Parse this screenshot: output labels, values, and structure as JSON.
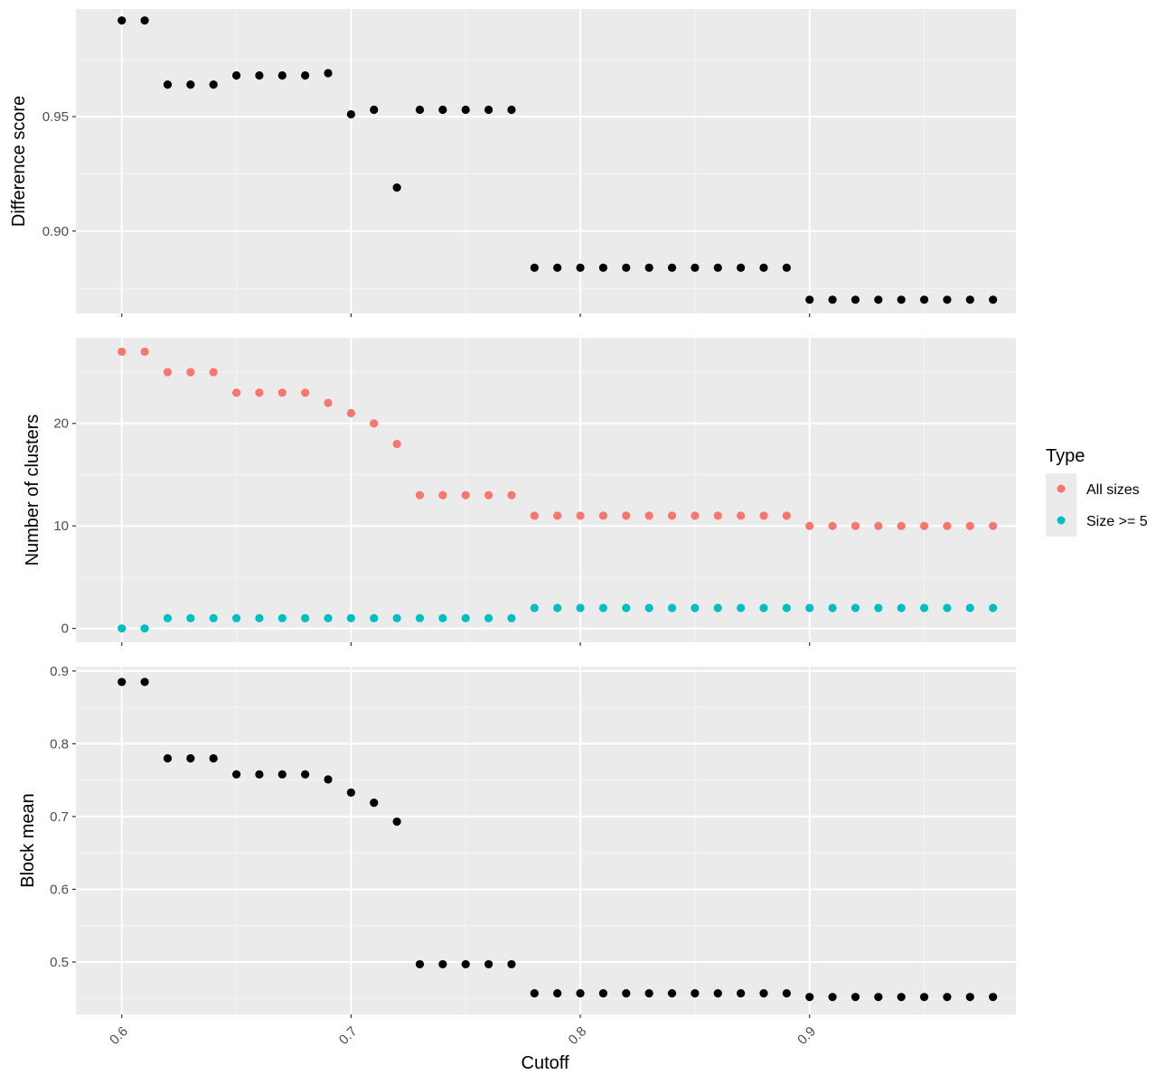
{
  "chart_data": [
    {
      "type": "scatter",
      "panel": "top",
      "ylabel": "Difference score",
      "xlim": [
        0.58,
        0.99
      ],
      "ylim": [
        0.864,
        0.997
      ],
      "y_ticks": [
        0.9,
        0.95
      ],
      "y_tick_labels": [
        "0.90",
        "0.95"
      ],
      "grid": true,
      "series": [
        {
          "color": "#000000",
          "x": [
            0.6,
            0.61,
            0.62,
            0.63,
            0.64,
            0.65,
            0.66,
            0.67,
            0.68,
            0.69,
            0.7,
            0.71,
            0.72,
            0.73,
            0.74,
            0.75,
            0.76,
            0.77,
            0.78,
            0.79,
            0.8,
            0.81,
            0.82,
            0.83,
            0.84,
            0.85,
            0.86,
            0.87,
            0.88,
            0.89,
            0.9,
            0.91,
            0.92,
            0.93,
            0.94,
            0.95,
            0.96,
            0.97,
            0.98
          ],
          "y": [
            0.992,
            0.992,
            0.964,
            0.964,
            0.964,
            0.968,
            0.968,
            0.968,
            0.968,
            0.969,
            0.951,
            0.953,
            0.919,
            0.953,
            0.953,
            0.953,
            0.953,
            0.953,
            0.884,
            0.884,
            0.884,
            0.884,
            0.884,
            0.884,
            0.884,
            0.884,
            0.884,
            0.884,
            0.884,
            0.884,
            0.87,
            0.87,
            0.87,
            0.87,
            0.87,
            0.87,
            0.87,
            0.87,
            0.87
          ]
        }
      ]
    },
    {
      "type": "scatter",
      "panel": "middle",
      "ylabel": "Number of clusters",
      "xlim": [
        0.58,
        0.99
      ],
      "ylim": [
        -1.35,
        28.35
      ],
      "y_ticks": [
        0,
        10,
        20
      ],
      "y_tick_labels": [
        "0",
        "10",
        "20"
      ],
      "grid": true,
      "series": [
        {
          "name": "All sizes",
          "color": "#F8766D",
          "x": [
            0.6,
            0.61,
            0.62,
            0.63,
            0.64,
            0.65,
            0.66,
            0.67,
            0.68,
            0.69,
            0.7,
            0.71,
            0.72,
            0.73,
            0.74,
            0.75,
            0.76,
            0.77,
            0.78,
            0.79,
            0.8,
            0.81,
            0.82,
            0.83,
            0.84,
            0.85,
            0.86,
            0.87,
            0.88,
            0.89,
            0.9,
            0.91,
            0.92,
            0.93,
            0.94,
            0.95,
            0.96,
            0.97,
            0.98
          ],
          "y": [
            27,
            27,
            25,
            25,
            25,
            23,
            23,
            23,
            23,
            22,
            21,
            20,
            18,
            13,
            13,
            13,
            13,
            13,
            11,
            11,
            11,
            11,
            11,
            11,
            11,
            11,
            11,
            11,
            11,
            11,
            10,
            10,
            10,
            10,
            10,
            10,
            10,
            10,
            10
          ]
        },
        {
          "name": "Size >= 5",
          "color": "#00BFC4",
          "x": [
            0.6,
            0.61,
            0.62,
            0.63,
            0.64,
            0.65,
            0.66,
            0.67,
            0.68,
            0.69,
            0.7,
            0.71,
            0.72,
            0.73,
            0.74,
            0.75,
            0.76,
            0.77,
            0.78,
            0.79,
            0.8,
            0.81,
            0.82,
            0.83,
            0.84,
            0.85,
            0.86,
            0.87,
            0.88,
            0.89,
            0.9,
            0.91,
            0.92,
            0.93,
            0.94,
            0.95,
            0.96,
            0.97,
            0.98
          ],
          "y": [
            0,
            0,
            1,
            1,
            1,
            1,
            1,
            1,
            1,
            1,
            1,
            1,
            1,
            1,
            1,
            1,
            1,
            1,
            2,
            2,
            2,
            2,
            2,
            2,
            2,
            2,
            2,
            2,
            2,
            2,
            2,
            2,
            2,
            2,
            2,
            2,
            2,
            2,
            2
          ]
        }
      ],
      "legend": {
        "title": "Type",
        "position": "right",
        "items": [
          "All sizes",
          "Size >= 5"
        ]
      }
    },
    {
      "type": "scatter",
      "panel": "bottom",
      "ylabel": "Block mean",
      "xlabel": "Cutoff",
      "xlim": [
        0.58,
        0.99
      ],
      "ylim": [
        0.428,
        0.906
      ],
      "y_ticks": [
        0.5,
        0.6,
        0.7,
        0.8,
        0.9
      ],
      "y_tick_labels": [
        "0.5",
        "0.6",
        "0.7",
        "0.8",
        "0.9"
      ],
      "x_ticks": [
        0.6,
        0.7,
        0.8,
        0.9
      ],
      "x_tick_labels": [
        "0.6",
        "0.7",
        "0.8",
        "0.9"
      ],
      "grid": true,
      "series": [
        {
          "color": "#000000",
          "x": [
            0.6,
            0.61,
            0.62,
            0.63,
            0.64,
            0.65,
            0.66,
            0.67,
            0.68,
            0.69,
            0.7,
            0.71,
            0.72,
            0.73,
            0.74,
            0.75,
            0.76,
            0.77,
            0.78,
            0.79,
            0.8,
            0.81,
            0.82,
            0.83,
            0.84,
            0.85,
            0.86,
            0.87,
            0.88,
            0.89,
            0.9,
            0.91,
            0.92,
            0.93,
            0.94,
            0.95,
            0.96,
            0.97,
            0.98
          ],
          "y": [
            0.885,
            0.885,
            0.78,
            0.78,
            0.78,
            0.758,
            0.758,
            0.758,
            0.758,
            0.751,
            0.733,
            0.719,
            0.693,
            0.497,
            0.497,
            0.497,
            0.497,
            0.497,
            0.457,
            0.457,
            0.457,
            0.457,
            0.457,
            0.457,
            0.457,
            0.457,
            0.457,
            0.457,
            0.457,
            0.457,
            0.452,
            0.452,
            0.452,
            0.452,
            0.452,
            0.452,
            0.452,
            0.452,
            0.452
          ]
        }
      ]
    }
  ]
}
